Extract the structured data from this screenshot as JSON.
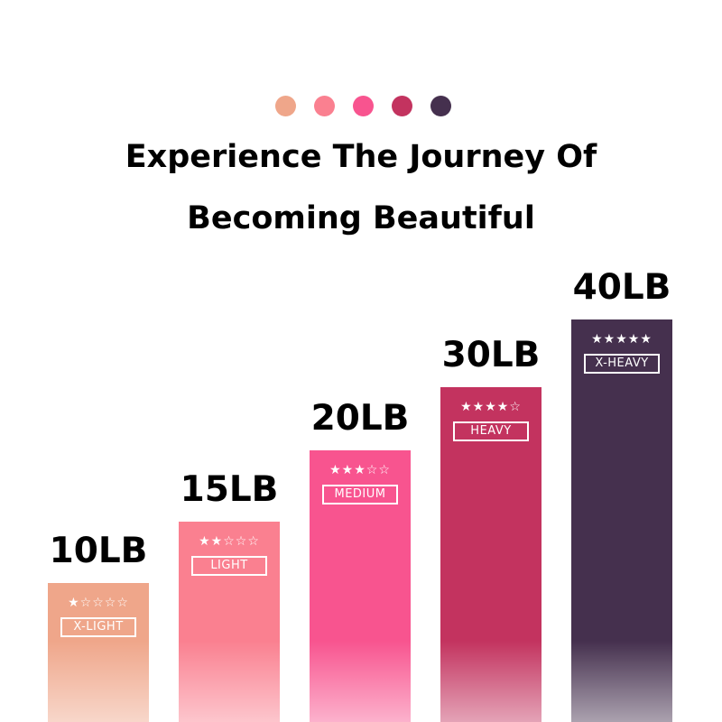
{
  "dots": [
    "#EFA68A",
    "#FA8090",
    "#F8548F",
    "#C3335F",
    "#45304E"
  ],
  "title_line1": "Experience The Journey Of",
  "title_line2": "Becoming Beautiful",
  "bands": [
    {
      "weight": "10LB",
      "level": "X-LIGHT",
      "stars": 1,
      "color": "#EFA68A"
    },
    {
      "weight": "15LB",
      "level": "LIGHT",
      "stars": 2,
      "color": "#FA8090"
    },
    {
      "weight": "20LB",
      "level": "MEDIUM",
      "stars": 3,
      "color": "#F8548F"
    },
    {
      "weight": "30LB",
      "level": "HEAVY",
      "stars": 4,
      "color": "#C3335F"
    },
    {
      "weight": "40LB",
      "level": "X-HEAVY",
      "stars": 5,
      "color": "#45304E"
    }
  ]
}
